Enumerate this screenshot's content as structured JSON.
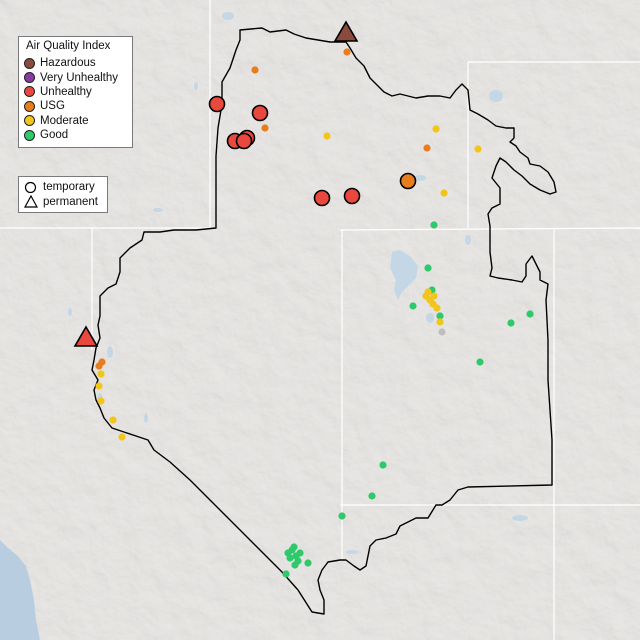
{
  "legend": {
    "title": "Air Quality Index",
    "categories": [
      {
        "label": "Hazardous",
        "color": "#8b4a3e"
      },
      {
        "label": "Very Unhealthy",
        "color": "#8a3ca0"
      },
      {
        "label": "Unhealthy",
        "color": "#e8483e"
      },
      {
        "label": "USG",
        "color": "#e87d1e"
      },
      {
        "label": "Moderate",
        "color": "#f2c51a"
      },
      {
        "label": "Good",
        "color": "#2ec96a"
      }
    ],
    "types": [
      {
        "label": "temporary",
        "shape": "circle"
      },
      {
        "label": "permanent",
        "shape": "triangle"
      }
    ]
  },
  "colors": {
    "land": "#e3e1de",
    "ocean": "#b8cee0",
    "lake": "#c3d7e6",
    "state_border": "#ffffff",
    "region_outline": "#000000",
    "no_data": "#bfbfbf"
  }
}
